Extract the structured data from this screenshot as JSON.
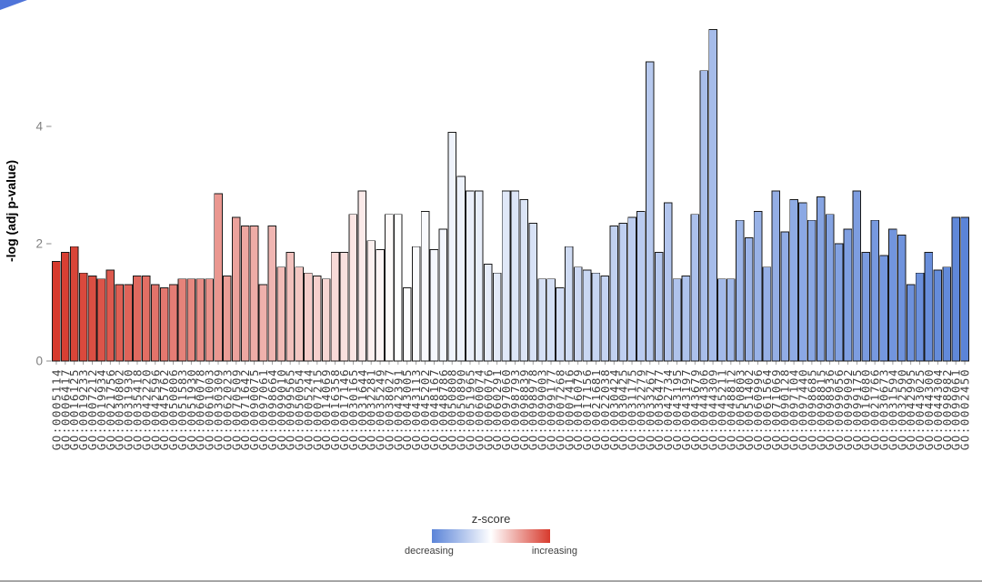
{
  "decor": {
    "corner_color": "#4f74d9",
    "bottom_edge_color": "#a6a6a6"
  },
  "axis": {
    "tick_color": "#8c8c8c",
    "ytick_label_color": "#7f7f7f",
    "xlabel_color": "#404040"
  },
  "chart_data": {
    "type": "bar",
    "title": "",
    "xlabel": "",
    "ylabel": "-log (adj p-value)",
    "ylim": [
      0,
      6
    ],
    "yticks": [
      0,
      2,
      4
    ],
    "grid": false,
    "bar_border": "#1a1a1a",
    "colorscale": {
      "low": "#5b84d8",
      "mid": "#ffffff",
      "high": "#d73a2d",
      "domain": [
        -2.2,
        0,
        2.2
      ]
    },
    "legend": {
      "title": "z-score",
      "left_label": "decreasing",
      "right_label": "increasing",
      "position": "bottom"
    },
    "categories": [
      "GO:0005114",
      "GO:0006417",
      "GO:0016125",
      "GO:0019233",
      "GO:0007212",
      "GO:0019934",
      "GO:0021756",
      "GO:0030802",
      "GO:0031930",
      "GO:0035418",
      "GO:0042220",
      "GO:0042596",
      "GO:0045762",
      "GO:0050806",
      "GO:0051583",
      "GO:0051930",
      "GO:0060078",
      "GO:0061003",
      "GO:0030309",
      "GO:0062023",
      "GO:0070509",
      "GO:0071642",
      "GO:0090075",
      "GO:0097061",
      "GO:0098664",
      "GO:0099010",
      "GO:0099565",
      "GO:0050054",
      "GO:0005244",
      "GO:0007215",
      "GO:0014069",
      "GO:0016358",
      "GO:0017146",
      "GO:0030165",
      "GO:0031644",
      "GO:0032281",
      "GO:0035249",
      "GO:0038027",
      "GO:0042391",
      "GO:0043005",
      "GO:0043113",
      "GO:0045202",
      "GO:0048167",
      "GO:0048786",
      "GO:0050808",
      "GO:0050890",
      "GO:0051965",
      "GO:0060074",
      "GO:0060076",
      "GO:0060291",
      "GO:0097060",
      "GO:0098793",
      "GO:0098839",
      "GO:0098978",
      "GO:0099003",
      "GO:0099177",
      "GO:0007268",
      "GO:0007416",
      "GO:0016079",
      "GO:0017156",
      "GO:0021681",
      "GO:0022038",
      "GO:0030424",
      "GO:0030425",
      "GO:0031175",
      "GO:0032279",
      "GO:0033267",
      "GO:0036477",
      "GO:0042734",
      "GO:0043195",
      "GO:0043197",
      "GO:0043679",
      "GO:0044306",
      "GO:0044309",
      "GO:0045211",
      "GO:0048812",
      "GO:0050803",
      "GO:0051402",
      "GO:0060996",
      "GO:0061564",
      "GO:0071069",
      "GO:0090128",
      "GO:0097104",
      "GO:0097440",
      "GO:0098685",
      "GO:0098815",
      "GO:0098936",
      "GO:0099056",
      "GO:0099092",
      "GO:0099175",
      "GO:0016080",
      "GO:0021766",
      "GO:0030673",
      "GO:0031594",
      "GO:0032590",
      "GO:0042995",
      "GO:0043025",
      "GO:0044300",
      "GO:0044304",
      "GO:0098982",
      "GO:0099061",
      "GO:0002450"
    ],
    "values": [
      1.7,
      1.85,
      1.95,
      1.5,
      1.45,
      1.4,
      1.55,
      1.3,
      1.3,
      1.45,
      1.45,
      1.3,
      1.25,
      1.3,
      1.4,
      1.4,
      1.4,
      1.4,
      2.85,
      1.45,
      2.45,
      2.3,
      2.3,
      1.3,
      2.3,
      1.6,
      1.85,
      1.6,
      1.5,
      1.45,
      1.4,
      1.85,
      1.85,
      2.5,
      2.9,
      2.05,
      1.9,
      2.5,
      2.5,
      1.25,
      1.95,
      2.55,
      1.9,
      2.25,
      3.9,
      3.15,
      2.9,
      2.9,
      1.65,
      1.5,
      2.9,
      2.9,
      2.75,
      2.35,
      1.4,
      1.4,
      1.25,
      1.95,
      1.6,
      1.55,
      1.5,
      1.45,
      2.3,
      2.35,
      2.45,
      2.55,
      5.1,
      1.85,
      2.7,
      1.4,
      1.45,
      2.5,
      4.95,
      5.65,
      1.4,
      1.4,
      2.4,
      2.1,
      2.55,
      1.6,
      2.9,
      2.2,
      2.75,
      2.7,
      2.4,
      2.8,
      2.5,
      2.0,
      2.25,
      2.9,
      1.85,
      2.4,
      1.8,
      2.25,
      2.15,
      1.3,
      1.5,
      1.85,
      1.55,
      1.6,
      2.45,
      2.45
    ],
    "zscores": [
      2.2,
      2.14,
      2.08,
      2.03,
      1.97,
      1.91,
      1.85,
      1.79,
      1.74,
      1.68,
      1.62,
      1.56,
      1.51,
      1.45,
      1.39,
      1.33,
      1.27,
      1.22,
      1.16,
      1.1,
      1.04,
      0.98,
      0.93,
      0.87,
      0.81,
      0.75,
      0.69,
      0.64,
      0.58,
      0.52,
      0.46,
      0.41,
      0.35,
      0.29,
      0.23,
      0.17,
      0.12,
      0.06,
      0,
      -0.03,
      -0.07,
      -0.1,
      -0.14,
      -0.17,
      -0.21,
      -0.24,
      -0.28,
      -0.31,
      -0.34,
      -0.38,
      -0.41,
      -0.45,
      -0.48,
      -0.52,
      -0.55,
      -0.58,
      -0.62,
      -0.65,
      -0.69,
      -0.72,
      -0.76,
      -0.79,
      -0.83,
      -0.86,
      -0.89,
      -0.93,
      -0.96,
      -1.0,
      -1.03,
      -1.07,
      -1.1,
      -1.13,
      -1.17,
      -1.2,
      -1.24,
      -1.27,
      -1.31,
      -1.34,
      -1.38,
      -1.41,
      -1.44,
      -1.48,
      -1.51,
      -1.55,
      -1.58,
      -1.62,
      -1.65,
      -1.68,
      -1.72,
      -1.75,
      -1.79,
      -1.82,
      -1.86,
      -1.89,
      -1.93,
      -1.96,
      -1.99,
      -2.03,
      -2.06,
      -2.1,
      -2.13,
      -2.2
    ]
  }
}
